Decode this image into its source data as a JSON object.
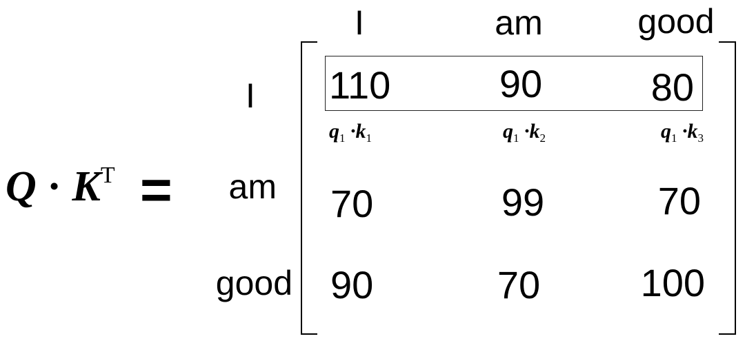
{
  "formula": {
    "lhs_q": "Q",
    "dot": "·",
    "lhs_k": "K",
    "sup": "T",
    "equals": "="
  },
  "column_headers": [
    "I",
    "am",
    "good"
  ],
  "row_headers": [
    "I",
    "am",
    "good"
  ],
  "matrix": [
    [
      110,
      90,
      80
    ],
    [
      70,
      99,
      70
    ],
    [
      90,
      70,
      100
    ]
  ],
  "annotations": [
    {
      "q": "q",
      "q_sub": "1",
      "dot": "·",
      "k": "k",
      "k_sub": "1"
    },
    {
      "q": "q",
      "q_sub": "1",
      "dot": "·",
      "k": "k",
      "k_sub": "2"
    },
    {
      "q": "q",
      "q_sub": "1",
      "dot": "·",
      "k": "k",
      "k_sub": "3"
    }
  ],
  "highlighted_row": 0
}
